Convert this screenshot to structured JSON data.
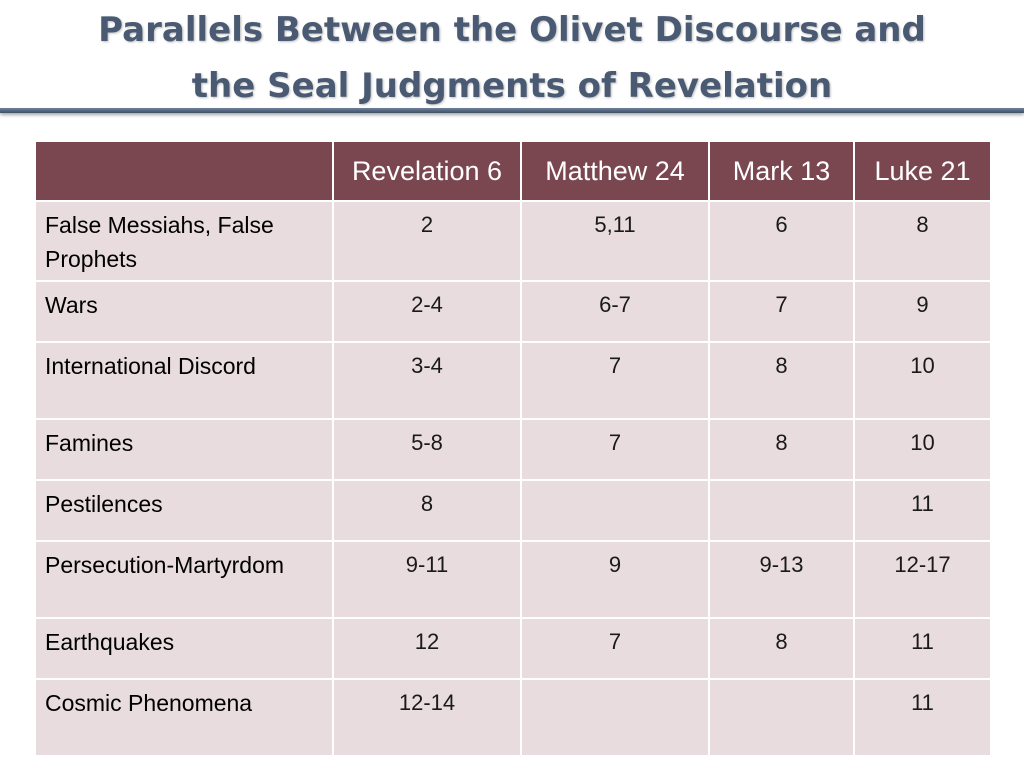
{
  "title": {
    "line1": "Parallels Between the Olivet Discourse and",
    "line2": "the Seal Judgments of Revelation"
  },
  "table": {
    "headers": [
      "",
      "Revelation 6",
      "Matthew 24",
      "Mark 13",
      "Luke 21"
    ],
    "rows": [
      {
        "topic": "False Messiahs, False Prophets",
        "rev": "2",
        "matt": "5,11",
        "mark": "6",
        "luke": "8"
      },
      {
        "topic": "Wars",
        "rev": "2-4",
        "matt": "6-7",
        "mark": "7",
        "luke": "9"
      },
      {
        "topic": "International Discord",
        "rev": "3-4",
        "matt": "7",
        "mark": "8",
        "luke": "10"
      },
      {
        "topic": "Famines",
        "rev": "5-8",
        "matt": "7",
        "mark": "8",
        "luke": "10"
      },
      {
        "topic": "Pestilences",
        "rev": "8",
        "matt": "",
        "mark": "",
        "luke": "11"
      },
      {
        "topic": "Persecution-Martyrdom",
        "rev": "9-11",
        "matt": "9",
        "mark": "9-13",
        "luke": "12-17"
      },
      {
        "topic": "Earthquakes",
        "rev": "12",
        "matt": "7",
        "mark": "8",
        "luke": "11"
      },
      {
        "topic": "Cosmic Phenomena",
        "rev": "12-14",
        "matt": "",
        "mark": "",
        "luke": "11"
      }
    ]
  },
  "colors": {
    "header_bg": "#7a4750",
    "cell_bg": "#e8dcde",
    "title_text": "#4a5a73",
    "rule": "#55667f"
  }
}
